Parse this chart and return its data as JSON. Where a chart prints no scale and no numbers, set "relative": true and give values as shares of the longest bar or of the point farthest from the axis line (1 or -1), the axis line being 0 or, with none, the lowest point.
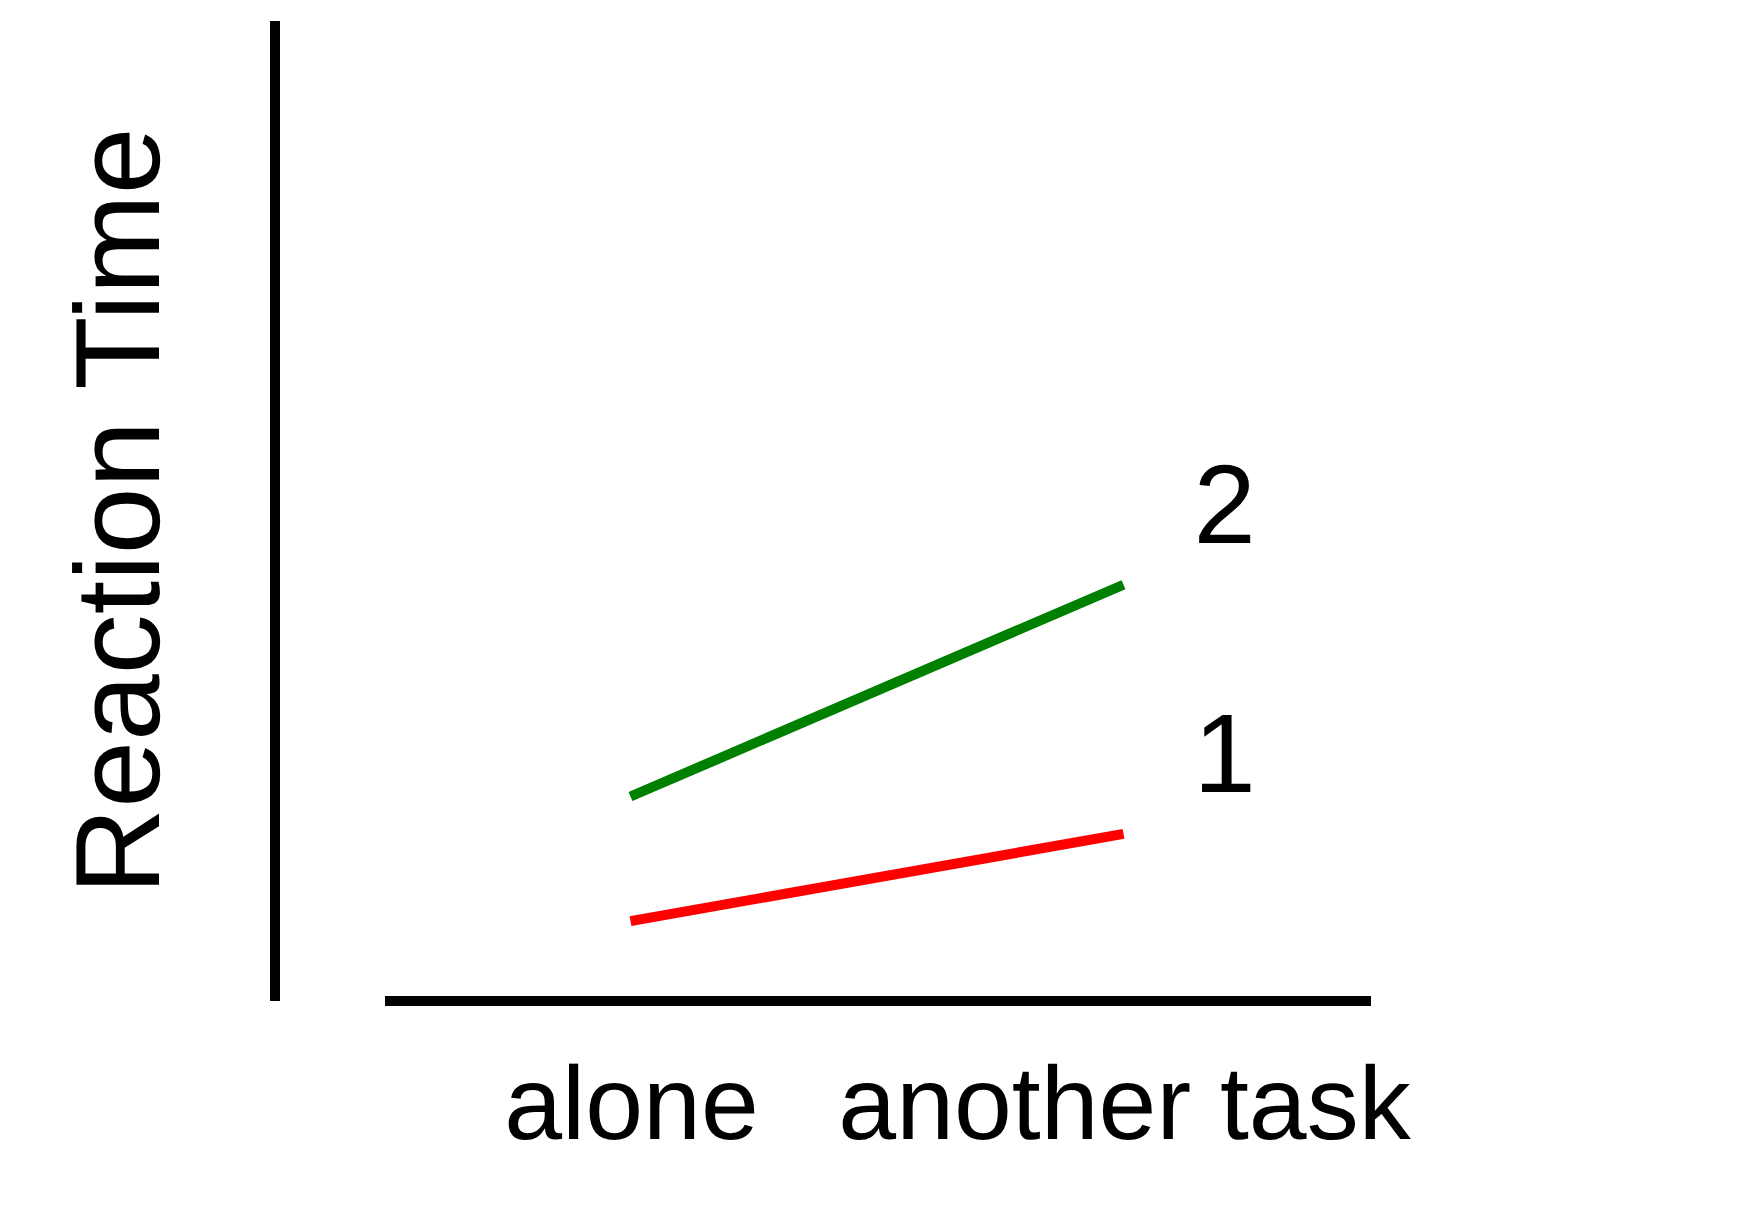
{
  "chart_data": {
    "type": "line",
    "ylabel": "Reaction Time",
    "categories": [
      "alone",
      "another task"
    ],
    "relative": true,
    "tick_labels": "x",
    "grid": false,
    "series": [
      {
        "name": "1",
        "color": "#ff0000",
        "values": [
          0.19,
          0.4
        ]
      },
      {
        "name": "2",
        "color": "#008000",
        "values": [
          0.49,
          1
        ]
      }
    ]
  }
}
